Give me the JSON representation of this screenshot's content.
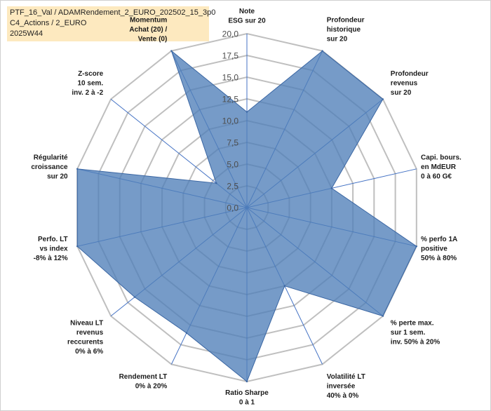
{
  "title_box": {
    "line1": "PTF_16_Val / ADAMRendement_2_EURO_202502_15_3p0",
    "line2": "C4_Actions / 2_EURO",
    "line3": "2025W44"
  },
  "chart_data": {
    "type": "radar",
    "title": "PTF_16_Val / ADAMRendement_2_EURO_202502_15_3p0 C4_Actions / 2_EURO 2025W44",
    "rlim": [
      0,
      20
    ],
    "ticks": [
      "0,0",
      "2,5",
      "5,0",
      "7,5",
      "10,0",
      "12,5",
      "15,0",
      "17,5",
      "20,0"
    ],
    "tick_values": [
      0,
      2.5,
      5,
      7.5,
      10,
      12.5,
      15,
      17.5,
      20
    ],
    "grid": true,
    "colors": {
      "fill": "#4f7fb8",
      "stroke": "#3a66a3",
      "grid": "#bfbfbf",
      "spoke": "#4472c4"
    },
    "categories": [
      [
        "Note",
        "ESG sur 20"
      ],
      [
        "Profondeur",
        "historique",
        "sur 20"
      ],
      [
        "Profondeur",
        "revenus",
        "sur 20"
      ],
      [
        "Capi. bours.",
        "en MdEUR",
        "0 à 60 G€"
      ],
      [
        "% perfo 1A",
        "positive",
        "50% à 80%"
      ],
      [
        "% perte max.",
        "sur 1 sem.",
        "inv. 50% à 20%"
      ],
      [
        "Volatilité LT",
        "inversée",
        "40% à 0%"
      ],
      [
        "Ratio Sharpe",
        "0 à 1"
      ],
      [
        "Rendement LT",
        "0% à 20%"
      ],
      [
        "Niveau LT",
        "revenus",
        "reccurents",
        "0% à 6%"
      ],
      [
        "Perfo. LT",
        "vs index",
        "-8% à 12%"
      ],
      [
        "Régularité",
        "croissance",
        "sur 20"
      ],
      [
        "Z-score",
        "10 sem.",
        "inv. 2 à -2"
      ],
      [
        "Momentum",
        "Achat (20) /",
        "Vente (0)"
      ]
    ],
    "series": [
      {
        "name": "PTF_16_Val",
        "values": [
          11,
          20,
          20,
          10,
          20,
          20,
          10,
          20,
          16,
          16.5,
          20,
          20,
          4.5,
          20
        ]
      }
    ]
  }
}
